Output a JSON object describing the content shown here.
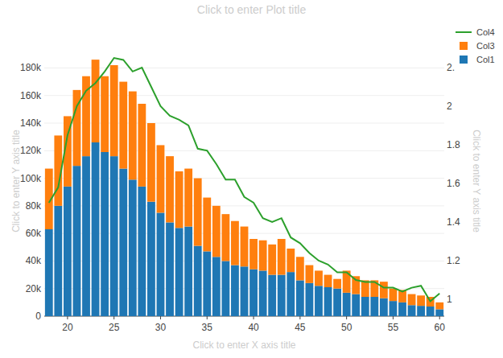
{
  "chart_data": {
    "type": "bar",
    "title": "Click to enter Plot title",
    "x_label": "Click to enter X axis title",
    "y_label": "Click to enter Y axis title",
    "y2_label": "Click to enter Y axis title",
    "stacked": true,
    "grid": true,
    "legend": "top-right",
    "x": [
      18,
      19,
      20,
      21,
      22,
      23,
      24,
      25,
      26,
      27,
      28,
      29,
      30,
      31,
      32,
      33,
      34,
      35,
      36,
      37,
      38,
      39,
      40,
      41,
      42,
      43,
      44,
      45,
      46,
      47,
      48,
      49,
      50,
      51,
      52,
      53,
      54,
      55,
      56,
      57,
      58,
      59,
      60
    ],
    "xlim": [
      17.5,
      60.5
    ],
    "xticks": [
      20,
      25,
      30,
      35,
      40,
      45,
      50,
      55,
      60
    ],
    "ylim": [
      0,
      196000
    ],
    "yticks": [
      0,
      {
        "value": 20000,
        "label": "20k"
      },
      {
        "value": 40000,
        "label": "40k"
      },
      {
        "value": 60000,
        "label": "60k"
      },
      {
        "value": 80000,
        "label": "80k"
      },
      {
        "value": 100000,
        "label": "100k"
      },
      {
        "value": 120000,
        "label": "120k"
      },
      {
        "value": 140000,
        "label": "140k"
      },
      {
        "value": 160000,
        "label": "160k"
      },
      {
        "value": 180000,
        "label": "180k"
      }
    ],
    "y2lim": [
      0.9125,
      2.3125
    ],
    "y2ticks": [
      1,
      1.2,
      1.4,
      1.6,
      1.8,
      2,
      {
        "value": 2.2,
        "label": "2."
      }
    ],
    "series": [
      {
        "name": "Col1",
        "type": "bar",
        "color": "#1f77b4",
        "values": [
          63000,
          80000,
          94000,
          109000,
          116000,
          126000,
          119000,
          116000,
          107000,
          99000,
          94000,
          83000,
          75000,
          68000,
          64000,
          65000,
          51000,
          47000,
          43000,
          40000,
          37000,
          36000,
          34000,
          33000,
          30000,
          30000,
          32000,
          26000,
          24000,
          22000,
          21000,
          20000,
          17000,
          16000,
          14000,
          14000,
          13000,
          11000,
          10000,
          8000,
          7500,
          7000,
          5000
        ]
      },
      {
        "name": "Col3",
        "type": "bar",
        "color": "#ff7f0e",
        "values": [
          44000,
          51000,
          51000,
          55000,
          58000,
          60000,
          55000,
          66000,
          63000,
          64000,
          60000,
          57000,
          49000,
          48000,
          41000,
          42000,
          49000,
          39000,
          37000,
          34000,
          32000,
          29000,
          22000,
          22000,
          22000,
          26000,
          17000,
          17000,
          13000,
          11000,
          9000,
          7000,
          16000,
          13000,
          12000,
          12000,
          12000,
          9000,
          9000,
          8000,
          7500,
          7000,
          5000
        ]
      },
      {
        "name": "Col4",
        "type": "line",
        "axis": "y2",
        "color": "#2ca02c",
        "values": [
          1.5,
          1.58,
          1.85,
          2.0,
          2.08,
          2.12,
          2.18,
          2.25,
          2.24,
          2.18,
          2.2,
          2.1,
          2.0,
          1.95,
          1.93,
          1.9,
          1.78,
          1.77,
          1.7,
          1.62,
          1.62,
          1.53,
          1.5,
          1.42,
          1.4,
          1.42,
          1.32,
          1.29,
          1.24,
          1.2,
          1.18,
          1.14,
          1.14,
          1.1,
          1.09,
          1.09,
          1.06,
          1.06,
          1.04,
          1.06,
          1.07,
          0.99,
          1.03
        ]
      }
    ]
  }
}
